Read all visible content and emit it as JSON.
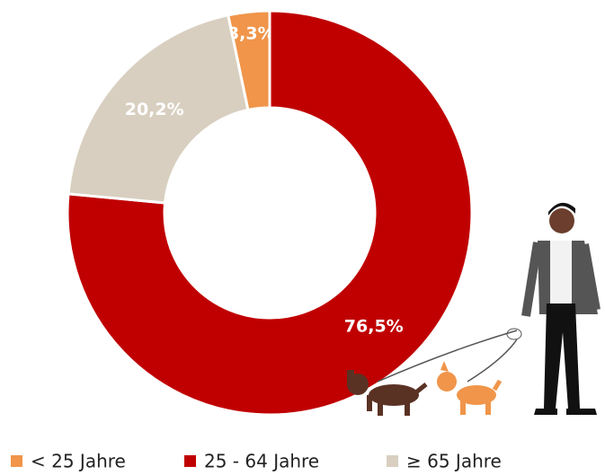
{
  "chart_data": {
    "type": "donut",
    "categories": [
      "< 25 Jahre",
      "25 - 64 Jahre",
      "≥ 65 Jahre"
    ],
    "values": [
      3.3,
      76.5,
      20.2
    ],
    "value_labels": [
      "3,3%",
      "76,5%",
      "20,2%"
    ],
    "colors": [
      "#f0954a",
      "#c00000",
      "#d8cfc0"
    ]
  }
}
